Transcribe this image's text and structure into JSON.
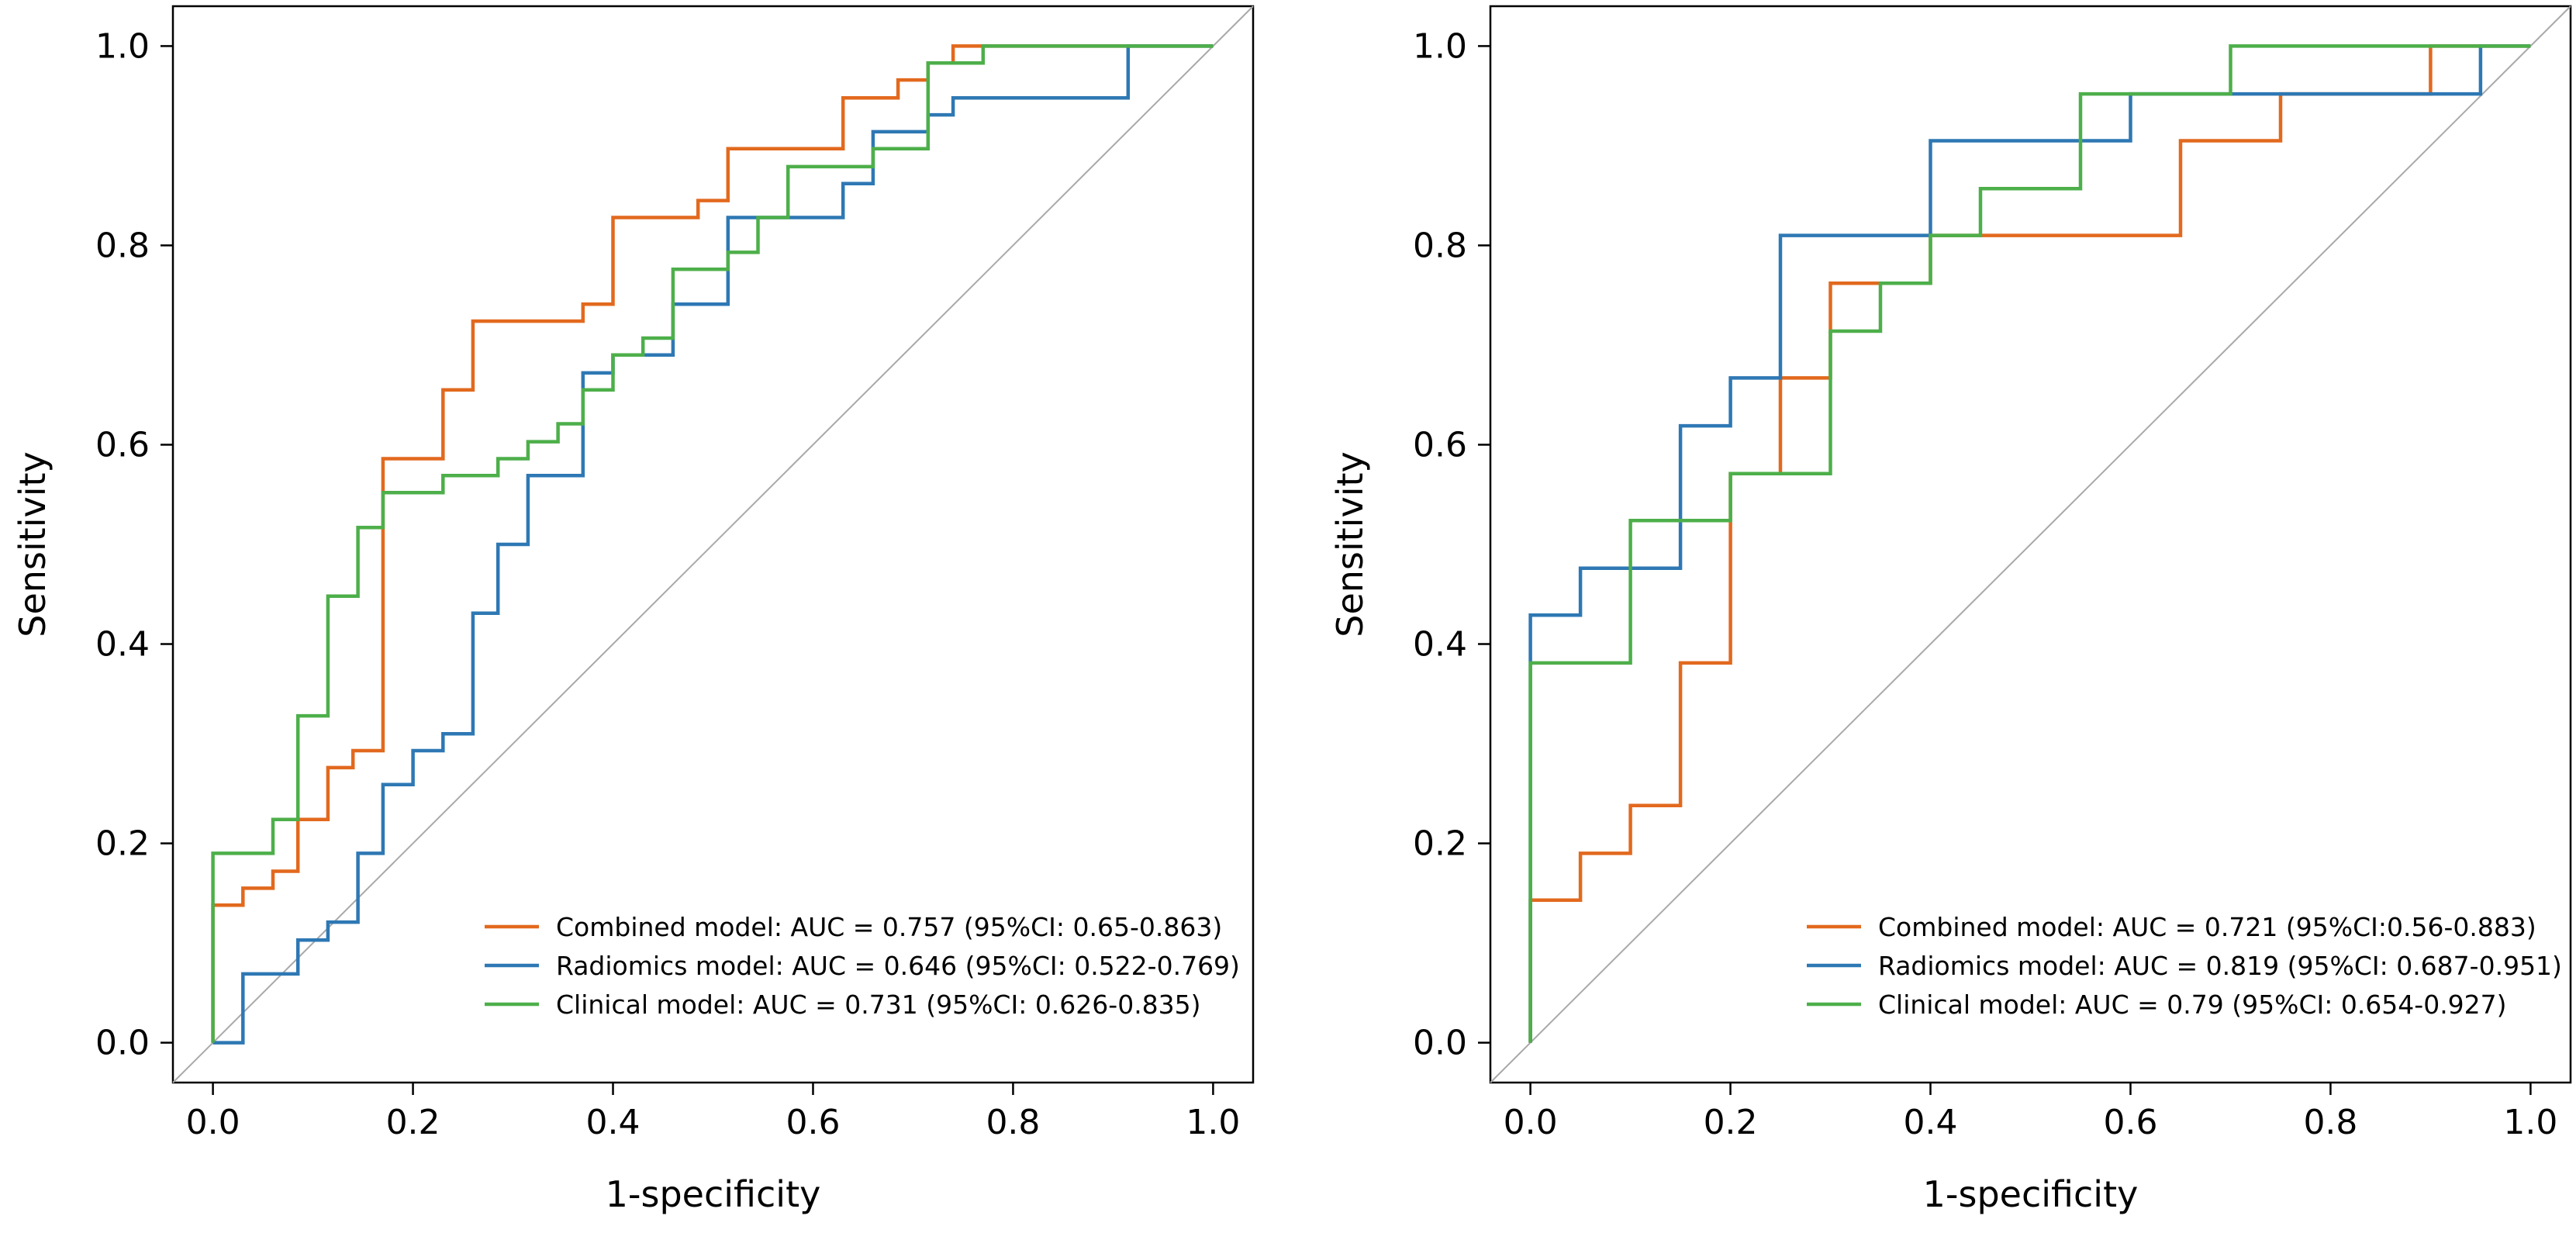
{
  "chart_data": [
    {
      "type": "line",
      "title": "",
      "xlabel": "1-specificity",
      "ylabel": "Sensitivity",
      "xlim": [
        -0.04,
        1.04
      ],
      "ylim": [
        -0.04,
        1.04
      ],
      "xticks": [
        "0.0",
        "0.2",
        "0.4",
        "0.6",
        "0.8",
        "1.0"
      ],
      "yticks": [
        "0.0",
        "0.2",
        "0.4",
        "0.6",
        "0.8",
        "1.0"
      ],
      "grid": false,
      "legend_position": "bottom-right",
      "reference_line": {
        "x": [
          0,
          1
        ],
        "y": [
          0,
          1
        ],
        "color": "#a9a9a9"
      },
      "series": [
        {
          "name": "Combined model: AUC = 0.757 (95%CI: 0.65-0.863)",
          "color": "#E2691E",
          "x": [
            0,
            0,
            0.03,
            0.03,
            0.06,
            0.06,
            0.085,
            0.085,
            0.115,
            0.115,
            0.14,
            0.14,
            0.17,
            0.17,
            0.23,
            0.23,
            0.26,
            0.26,
            0.37,
            0.37,
            0.4,
            0.4,
            0.485,
            0.485,
            0.515,
            0.515,
            0.63,
            0.63,
            0.685,
            0.685,
            0.715,
            0.715,
            0.74,
            0.74,
            1.0
          ],
          "y": [
            0,
            0.138,
            0.138,
            0.155,
            0.155,
            0.172,
            0.172,
            0.224,
            0.224,
            0.276,
            0.276,
            0.293,
            0.293,
            0.586,
            0.586,
            0.655,
            0.655,
            0.724,
            0.724,
            0.741,
            0.741,
            0.828,
            0.828,
            0.845,
            0.845,
            0.897,
            0.897,
            0.948,
            0.948,
            0.966,
            0.966,
            0.983,
            0.983,
            1.0,
            1.0
          ]
        },
        {
          "name": "Radiomics model: AUC = 0.646 (95%CI: 0.522-0.769)",
          "color": "#2E78B4",
          "x": [
            0,
            0.03,
            0.03,
            0.085,
            0.085,
            0.115,
            0.115,
            0.145,
            0.145,
            0.17,
            0.17,
            0.2,
            0.2,
            0.23,
            0.23,
            0.26,
            0.26,
            0.285,
            0.285,
            0.315,
            0.315,
            0.37,
            0.37,
            0.4,
            0.4,
            0.46,
            0.46,
            0.515,
            0.515,
            0.63,
            0.63,
            0.66,
            0.66,
            0.715,
            0.715,
            0.74,
            0.74,
            0.915,
            0.915,
            1.0
          ],
          "y": [
            0,
            0,
            0.069,
            0.069,
            0.103,
            0.103,
            0.121,
            0.121,
            0.19,
            0.19,
            0.259,
            0.259,
            0.293,
            0.293,
            0.31,
            0.31,
            0.431,
            0.431,
            0.5,
            0.5,
            0.569,
            0.569,
            0.672,
            0.672,
            0.69,
            0.69,
            0.741,
            0.741,
            0.828,
            0.828,
            0.862,
            0.862,
            0.914,
            0.914,
            0.931,
            0.931,
            0.948,
            0.948,
            1.0,
            1.0
          ]
        },
        {
          "name": "Clinical model: AUC = 0.731 (95%CI: 0.626-0.835)",
          "color": "#4DAF4A",
          "x": [
            0,
            0,
            0.06,
            0.06,
            0.085,
            0.085,
            0.115,
            0.115,
            0.145,
            0.145,
            0.17,
            0.17,
            0.23,
            0.23,
            0.285,
            0.285,
            0.315,
            0.315,
            0.345,
            0.345,
            0.37,
            0.37,
            0.4,
            0.4,
            0.43,
            0.43,
            0.46,
            0.46,
            0.515,
            0.515,
            0.545,
            0.545,
            0.575,
            0.575,
            0.66,
            0.66,
            0.715,
            0.715,
            0.77,
            0.77,
            1.0
          ],
          "y": [
            0,
            0.19,
            0.19,
            0.224,
            0.224,
            0.328,
            0.328,
            0.448,
            0.448,
            0.517,
            0.517,
            0.552,
            0.552,
            0.569,
            0.569,
            0.586,
            0.586,
            0.603,
            0.603,
            0.621,
            0.621,
            0.655,
            0.655,
            0.69,
            0.69,
            0.707,
            0.707,
            0.776,
            0.776,
            0.793,
            0.793,
            0.828,
            0.828,
            0.879,
            0.879,
            0.897,
            0.897,
            0.983,
            0.983,
            1.0,
            1.0
          ]
        }
      ]
    },
    {
      "type": "line",
      "title": "",
      "xlabel": "1-specificity",
      "ylabel": "Sensitivity",
      "xlim": [
        -0.04,
        1.04
      ],
      "ylim": [
        -0.04,
        1.04
      ],
      "xticks": [
        "0.0",
        "0.2",
        "0.4",
        "0.6",
        "0.8",
        "1.0"
      ],
      "yticks": [
        "0.0",
        "0.2",
        "0.4",
        "0.6",
        "0.8",
        "1.0"
      ],
      "grid": false,
      "legend_position": "bottom-right",
      "reference_line": {
        "x": [
          0,
          1
        ],
        "y": [
          0,
          1
        ],
        "color": "#a9a9a9"
      },
      "series": [
        {
          "name": "Combined model: AUC = 0.721 (95%CI:0.56-0.883)",
          "color": "#E2691E",
          "x": [
            0,
            0,
            0.05,
            0.05,
            0.1,
            0.1,
            0.15,
            0.15,
            0.2,
            0.2,
            0.25,
            0.25,
            0.3,
            0.3,
            0.4,
            0.4,
            0.65,
            0.65,
            0.75,
            0.75,
            0.9,
            0.9,
            1.0
          ],
          "y": [
            0,
            0.143,
            0.143,
            0.19,
            0.19,
            0.238,
            0.238,
            0.381,
            0.381,
            0.571,
            0.571,
            0.667,
            0.667,
            0.762,
            0.762,
            0.81,
            0.81,
            0.905,
            0.905,
            0.952,
            0.952,
            1.0,
            1.0
          ]
        },
        {
          "name": "Radiomics model: AUC = 0.819 (95%CI: 0.687-0.951)",
          "color": "#2E78B4",
          "x": [
            0,
            0,
            0.05,
            0.05,
            0.15,
            0.15,
            0.2,
            0.2,
            0.25,
            0.25,
            0.4,
            0.4,
            0.6,
            0.6,
            0.95,
            0.95,
            1.0
          ],
          "y": [
            0,
            0.429,
            0.429,
            0.476,
            0.476,
            0.619,
            0.619,
            0.667,
            0.667,
            0.81,
            0.81,
            0.905,
            0.905,
            0.952,
            0.952,
            1.0,
            1.0
          ]
        },
        {
          "name": "Clinical model: AUC = 0.79 (95%CI: 0.654-0.927)",
          "color": "#4DAF4A",
          "x": [
            0,
            0,
            0.1,
            0.1,
            0.2,
            0.2,
            0.3,
            0.3,
            0.35,
            0.35,
            0.4,
            0.4,
            0.45,
            0.45,
            0.55,
            0.55,
            0.7,
            0.7,
            1.0
          ],
          "y": [
            0,
            0.381,
            0.381,
            0.524,
            0.524,
            0.571,
            0.571,
            0.714,
            0.714,
            0.762,
            0.762,
            0.81,
            0.81,
            0.857,
            0.857,
            0.952,
            0.952,
            1.0,
            1.0
          ]
        }
      ]
    }
  ]
}
